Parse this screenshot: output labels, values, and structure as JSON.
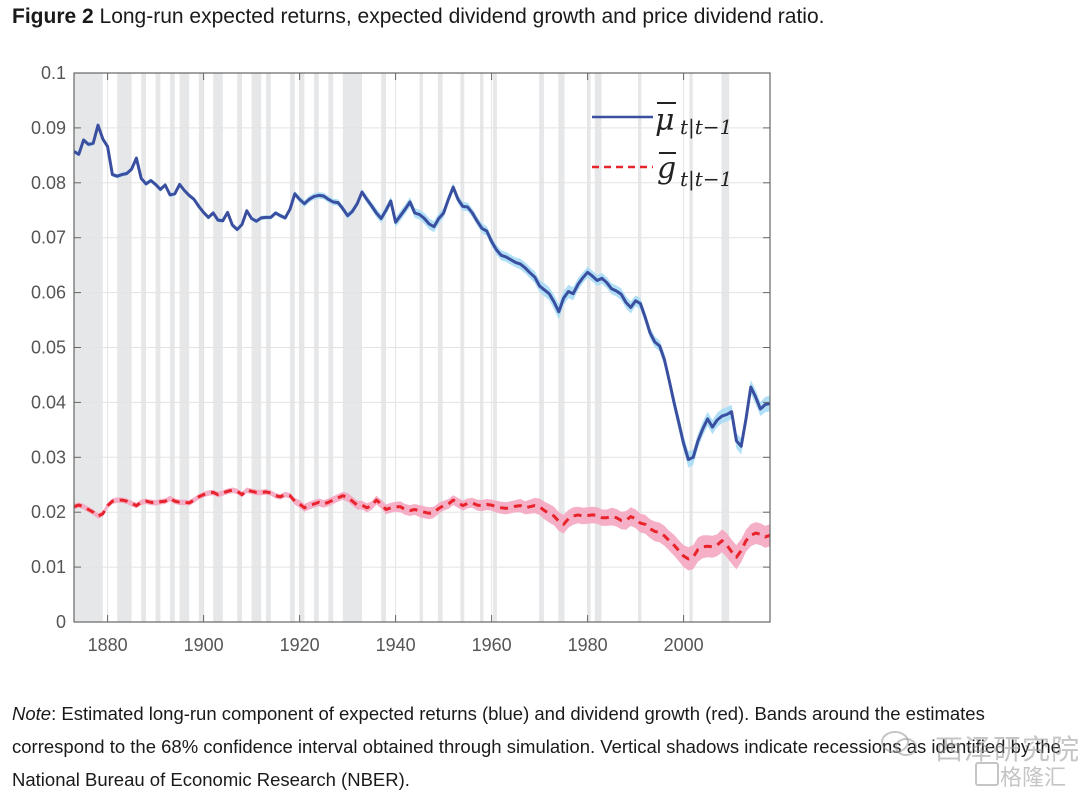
{
  "title": {
    "bold": "Figure 2",
    "text": " Long-run expected returns, expected dividend growth and price dividend ratio."
  },
  "note": {
    "label": "Note",
    "text": ": Estimated long-run component of expected returns (blue) and dividend growth (red).  Bands around the estimates correspond to the 68% confidence interval obtained through simulation. Vertical shadows indicate recessions as identified by the National Bureau of Economic Research (NBER)."
  },
  "watermark": {
    "line1": "西泽研究院",
    "line2": "格隆汇"
  },
  "colors": {
    "mu_line": "#3a4fa0",
    "mu_band": "#a9ddf5",
    "g_line": "#e8232b",
    "g_band": "#f4a6c0",
    "recession": "#e6e7e9",
    "grid": "#e3e3e3",
    "axis": "#666666"
  },
  "chart_data": {
    "type": "line",
    "title": "Long-run expected returns, expected dividend growth and price dividend ratio",
    "xlabel": "",
    "ylabel": "",
    "xlim": [
      1873,
      2018
    ],
    "ylim": [
      0,
      0.1
    ],
    "xticks": [
      1880,
      1900,
      1920,
      1940,
      1960,
      1980,
      2000
    ],
    "yticks": [
      0,
      0.01,
      0.02,
      0.03,
      0.04,
      0.05,
      0.06,
      0.07,
      0.08,
      0.09,
      0.1
    ],
    "ytick_labels": [
      "0",
      "0.01",
      "0.02",
      "0.03",
      "0.04",
      "0.05",
      "0.06",
      "0.07",
      "0.08",
      "0.09",
      "0.1"
    ],
    "grid": true,
    "legend_position": "top-right",
    "recessions": [
      [
        1873,
        1879
      ],
      [
        1882,
        1885
      ],
      [
        1887,
        1888
      ],
      [
        1890,
        1891
      ],
      [
        1893,
        1894
      ],
      [
        1895,
        1897
      ],
      [
        1899,
        1900
      ],
      [
        1902,
        1904
      ],
      [
        1907,
        1908
      ],
      [
        1910,
        1912
      ],
      [
        1913,
        1914
      ],
      [
        1918,
        1919
      ],
      [
        1920,
        1921
      ],
      [
        1923,
        1924
      ],
      [
        1926,
        1927
      ],
      [
        1929,
        1933
      ],
      [
        1937,
        1938
      ],
      [
        1945,
        1945.7
      ],
      [
        1948.8,
        1949.8
      ],
      [
        1953.5,
        1954.3
      ],
      [
        1957.6,
        1958.3
      ],
      [
        1960.3,
        1961.1
      ],
      [
        1969.9,
        1970.9
      ],
      [
        1973.9,
        1975.2
      ],
      [
        1980,
        1980.6
      ],
      [
        1981.5,
        1982.9
      ],
      [
        1990.5,
        1991.2
      ],
      [
        2001.2,
        2001.9
      ],
      [
        2007.9,
        2009.5
      ]
    ],
    "series": [
      {
        "name": "mu_bar_{t|t-1}",
        "legend_label": "μ̄ t|t−1",
        "style": "solid",
        "x": [
          1873,
          1874,
          1875,
          1876,
          1877,
          1878,
          1879,
          1880,
          1881,
          1882,
          1883,
          1884,
          1885,
          1886,
          1887,
          1888,
          1889,
          1890,
          1891,
          1892,
          1893,
          1894,
          1895,
          1896,
          1897,
          1898,
          1899,
          1900,
          1901,
          1902,
          1903,
          1904,
          1905,
          1906,
          1907,
          1908,
          1909,
          1910,
          1911,
          1912,
          1913,
          1914,
          1915,
          1916,
          1917,
          1918,
          1919,
          1920,
          1921,
          1922,
          1923,
          1924,
          1925,
          1926,
          1927,
          1928,
          1929,
          1930,
          1931,
          1932,
          1933,
          1934,
          1935,
          1936,
          1937,
          1938,
          1939,
          1940,
          1941,
          1942,
          1943,
          1944,
          1945,
          1946,
          1947,
          1948,
          1949,
          1950,
          1951,
          1952,
          1953,
          1954,
          1955,
          1956,
          1957,
          1958,
          1959,
          1960,
          1961,
          1962,
          1963,
          1964,
          1965,
          1966,
          1967,
          1968,
          1969,
          1970,
          1971,
          1972,
          1973,
          1974,
          1975,
          1976,
          1977,
          1978,
          1979,
          1980,
          1981,
          1982,
          1983,
          1984,
          1985,
          1986,
          1987,
          1988,
          1989,
          1990,
          1991,
          1992,
          1993,
          1994,
          1995,
          1996,
          1997,
          1998,
          1999,
          2000,
          2001,
          2002,
          2003,
          2004,
          2005,
          2006,
          2007,
          2008,
          2009,
          2010,
          2011,
          2012,
          2013,
          2014,
          2015,
          2016,
          2017,
          2018
        ],
        "y": [
          0.0857,
          0.0852,
          0.0878,
          0.087,
          0.0872,
          0.0905,
          0.088,
          0.0866,
          0.0815,
          0.0812,
          0.0815,
          0.0817,
          0.0825,
          0.0845,
          0.0808,
          0.0798,
          0.0804,
          0.0797,
          0.0788,
          0.0796,
          0.0778,
          0.078,
          0.0797,
          0.0786,
          0.0777,
          0.077,
          0.0757,
          0.0746,
          0.0737,
          0.0745,
          0.0732,
          0.0731,
          0.0746,
          0.0723,
          0.0715,
          0.0724,
          0.0749,
          0.0735,
          0.073,
          0.0736,
          0.0737,
          0.0737,
          0.0745,
          0.074,
          0.0736,
          0.0752,
          0.078,
          0.077,
          0.0762,
          0.077,
          0.0775,
          0.0777,
          0.0776,
          0.077,
          0.0765,
          0.0764,
          0.0753,
          0.074,
          0.0748,
          0.0762,
          0.0783,
          0.077,
          0.0758,
          0.0745,
          0.0735,
          0.075,
          0.0767,
          0.0728,
          0.074,
          0.0752,
          0.0765,
          0.0745,
          0.0742,
          0.0735,
          0.0725,
          0.072,
          0.0735,
          0.0745,
          0.077,
          0.0792,
          0.077,
          0.0757,
          0.0756,
          0.0745,
          0.073,
          0.0717,
          0.0712,
          0.0693,
          0.0678,
          0.0668,
          0.0665,
          0.066,
          0.0655,
          0.0652,
          0.0645,
          0.0636,
          0.0628,
          0.0612,
          0.0605,
          0.0598,
          0.0583,
          0.0565,
          0.059,
          0.0602,
          0.0598,
          0.0615,
          0.0627,
          0.0637,
          0.063,
          0.0622,
          0.0626,
          0.0618,
          0.0607,
          0.0603,
          0.0597,
          0.0582,
          0.0573,
          0.0585,
          0.058,
          0.0555,
          0.0527,
          0.051,
          0.0503,
          0.0478,
          0.044,
          0.04,
          0.0363,
          0.0325,
          0.0296,
          0.03,
          0.033,
          0.0352,
          0.037,
          0.0355,
          0.0368,
          0.0375,
          0.0378,
          0.0383,
          0.033,
          0.032,
          0.037,
          0.0428,
          0.041,
          0.0388,
          0.0396,
          0.0398
        ],
        "band_halfwidth": [
          0.0004,
          0.0004,
          0.0004,
          0.0004,
          0.0004,
          0.0004,
          0.0004,
          0.0004,
          0.0004,
          0.0004,
          0.0004,
          0.0004,
          0.0004,
          0.0004,
          0.0004,
          0.0004,
          0.0004,
          0.0004,
          0.0004,
          0.0004,
          0.0004,
          0.0004,
          0.0004,
          0.0004,
          0.0004,
          0.0004,
          0.0004,
          0.0004,
          0.0004,
          0.0004,
          0.0004,
          0.0004,
          0.0004,
          0.0004,
          0.0004,
          0.0004,
          0.0004,
          0.0004,
          0.0004,
          0.0004,
          0.0004,
          0.0004,
          0.0004,
          0.0004,
          0.0004,
          0.0004,
          0.0005,
          0.0006,
          0.0006,
          0.0006,
          0.0006,
          0.0006,
          0.0006,
          0.0006,
          0.0006,
          0.0006,
          0.0006,
          0.0006,
          0.0006,
          0.0006,
          0.0006,
          0.0007,
          0.0007,
          0.0008,
          0.0008,
          0.0008,
          0.0008,
          0.0009,
          0.0009,
          0.0009,
          0.0009,
          0.0009,
          0.0009,
          0.001,
          0.001,
          0.001,
          0.001,
          0.0009,
          0.0008,
          0.0008,
          0.0008,
          0.0008,
          0.0008,
          0.0008,
          0.0008,
          0.0009,
          0.0009,
          0.0009,
          0.0009,
          0.0009,
          0.0009,
          0.0009,
          0.0009,
          0.001,
          0.001,
          0.001,
          0.0011,
          0.0011,
          0.0012,
          0.0012,
          0.0013,
          0.0014,
          0.0013,
          0.0012,
          0.0012,
          0.0011,
          0.001,
          0.001,
          0.001,
          0.001,
          0.001,
          0.001,
          0.001,
          0.001,
          0.0011,
          0.0011,
          0.0011,
          0.001,
          0.001,
          0.001,
          0.001,
          0.001,
          0.001,
          0.0011,
          0.0012,
          0.0013,
          0.0014,
          0.0014,
          0.0015,
          0.0014,
          0.0013,
          0.0013,
          0.0013,
          0.0013,
          0.0013,
          0.0013,
          0.0013,
          0.0013,
          0.0014,
          0.0015,
          0.0014,
          0.0013,
          0.0013,
          0.0013,
          0.0014,
          0.0014
        ]
      },
      {
        "name": "g_bar_{t|t-1}",
        "legend_label": "ḡ t|t−1",
        "style": "dashed",
        "x": [
          1873,
          1874,
          1875,
          1876,
          1877,
          1878,
          1879,
          1880,
          1881,
          1882,
          1883,
          1884,
          1885,
          1886,
          1887,
          1888,
          1889,
          1890,
          1891,
          1892,
          1893,
          1894,
          1895,
          1896,
          1897,
          1898,
          1899,
          1900,
          1901,
          1902,
          1903,
          1904,
          1905,
          1906,
          1907,
          1908,
          1909,
          1910,
          1911,
          1912,
          1913,
          1914,
          1915,
          1916,
          1917,
          1918,
          1919,
          1920,
          1921,
          1922,
          1923,
          1924,
          1925,
          1926,
          1927,
          1928,
          1929,
          1930,
          1931,
          1932,
          1933,
          1934,
          1935,
          1936,
          1937,
          1938,
          1939,
          1940,
          1941,
          1942,
          1943,
          1944,
          1945,
          1946,
          1947,
          1948,
          1949,
          1950,
          1951,
          1952,
          1953,
          1954,
          1955,
          1956,
          1957,
          1958,
          1959,
          1960,
          1961,
          1962,
          1963,
          1964,
          1965,
          1966,
          1967,
          1968,
          1969,
          1970,
          1971,
          1972,
          1973,
          1974,
          1975,
          1976,
          1977,
          1978,
          1979,
          1980,
          1981,
          1982,
          1983,
          1984,
          1985,
          1986,
          1987,
          1988,
          1989,
          1990,
          1991,
          1992,
          1993,
          1994,
          1995,
          1996,
          1997,
          1998,
          1999,
          2000,
          2001,
          2002,
          2003,
          2004,
          2005,
          2006,
          2007,
          2008,
          2009,
          2010,
          2011,
          2012,
          2013,
          2014,
          2015,
          2016,
          2017,
          2018
        ],
        "y": [
          0.021,
          0.0213,
          0.021,
          0.0205,
          0.02,
          0.0193,
          0.0197,
          0.0212,
          0.022,
          0.0222,
          0.0222,
          0.022,
          0.0216,
          0.0212,
          0.0218,
          0.022,
          0.0218,
          0.0217,
          0.0219,
          0.022,
          0.0225,
          0.022,
          0.0218,
          0.0218,
          0.0217,
          0.0222,
          0.0228,
          0.0232,
          0.0235,
          0.0236,
          0.0232,
          0.0235,
          0.0238,
          0.024,
          0.0238,
          0.0232,
          0.024,
          0.0238,
          0.0236,
          0.0236,
          0.0237,
          0.0235,
          0.023,
          0.0228,
          0.0232,
          0.023,
          0.022,
          0.0215,
          0.0208,
          0.0212,
          0.0215,
          0.0218,
          0.0215,
          0.0218,
          0.0222,
          0.0226,
          0.023,
          0.0227,
          0.022,
          0.0213,
          0.0213,
          0.0208,
          0.0212,
          0.0222,
          0.0215,
          0.0205,
          0.0208,
          0.021,
          0.021,
          0.0205,
          0.0203,
          0.0205,
          0.0202,
          0.02,
          0.0198,
          0.02,
          0.0207,
          0.0212,
          0.0215,
          0.0222,
          0.0217,
          0.0212,
          0.0216,
          0.0217,
          0.0213,
          0.0212,
          0.0214,
          0.0213,
          0.021,
          0.0208,
          0.0207,
          0.0209,
          0.0211,
          0.0212,
          0.0208,
          0.021,
          0.0212,
          0.021,
          0.0203,
          0.0198,
          0.0193,
          0.0183,
          0.0178,
          0.0188,
          0.0193,
          0.0195,
          0.0193,
          0.0194,
          0.0195,
          0.0194,
          0.019,
          0.019,
          0.0192,
          0.019,
          0.0185,
          0.0185,
          0.0192,
          0.0188,
          0.018,
          0.0178,
          0.017,
          0.0165,
          0.0163,
          0.0157,
          0.0148,
          0.014,
          0.013,
          0.012,
          0.0115,
          0.0118,
          0.0132,
          0.0137,
          0.0138,
          0.0137,
          0.014,
          0.0148,
          0.014,
          0.0128,
          0.0118,
          0.013,
          0.0148,
          0.0158,
          0.0162,
          0.016,
          0.0155,
          0.0158
        ],
        "band_halfwidth": [
          0.0005,
          0.0005,
          0.0005,
          0.0005,
          0.0005,
          0.0005,
          0.0005,
          0.0005,
          0.0005,
          0.0005,
          0.0005,
          0.0005,
          0.0005,
          0.0005,
          0.0005,
          0.0005,
          0.0005,
          0.0005,
          0.0005,
          0.0005,
          0.0005,
          0.0005,
          0.0005,
          0.0005,
          0.0005,
          0.0005,
          0.0005,
          0.0005,
          0.0005,
          0.0005,
          0.0005,
          0.0005,
          0.0005,
          0.0005,
          0.0005,
          0.0005,
          0.0005,
          0.0005,
          0.0005,
          0.0005,
          0.0005,
          0.0005,
          0.0005,
          0.0005,
          0.0005,
          0.0005,
          0.0006,
          0.0007,
          0.0007,
          0.0007,
          0.0007,
          0.0007,
          0.0007,
          0.0007,
          0.0007,
          0.0007,
          0.0007,
          0.0008,
          0.0008,
          0.0008,
          0.0008,
          0.0008,
          0.0008,
          0.0008,
          0.0008,
          0.0009,
          0.0009,
          0.0009,
          0.001,
          0.001,
          0.001,
          0.001,
          0.0011,
          0.0011,
          0.0011,
          0.001,
          0.001,
          0.0009,
          0.0009,
          0.0009,
          0.0009,
          0.0009,
          0.0009,
          0.0009,
          0.001,
          0.001,
          0.001,
          0.001,
          0.0011,
          0.0011,
          0.0011,
          0.0011,
          0.0011,
          0.0012,
          0.0012,
          0.0013,
          0.0014,
          0.0015,
          0.0016,
          0.0017,
          0.0017,
          0.0017,
          0.0017,
          0.0016,
          0.0016,
          0.0015,
          0.0015,
          0.0015,
          0.0015,
          0.0015,
          0.0015,
          0.0015,
          0.0016,
          0.0016,
          0.0016,
          0.0017,
          0.0017,
          0.0017,
          0.0017,
          0.0017,
          0.0017,
          0.0018,
          0.0018,
          0.0018,
          0.0018,
          0.0019,
          0.0019,
          0.002,
          0.0021,
          0.0022,
          0.0022,
          0.0021,
          0.002,
          0.002,
          0.002,
          0.0021,
          0.0022,
          0.0022,
          0.0022,
          0.0021,
          0.002,
          0.002,
          0.002,
          0.002,
          0.002,
          0.002
        ]
      }
    ]
  }
}
